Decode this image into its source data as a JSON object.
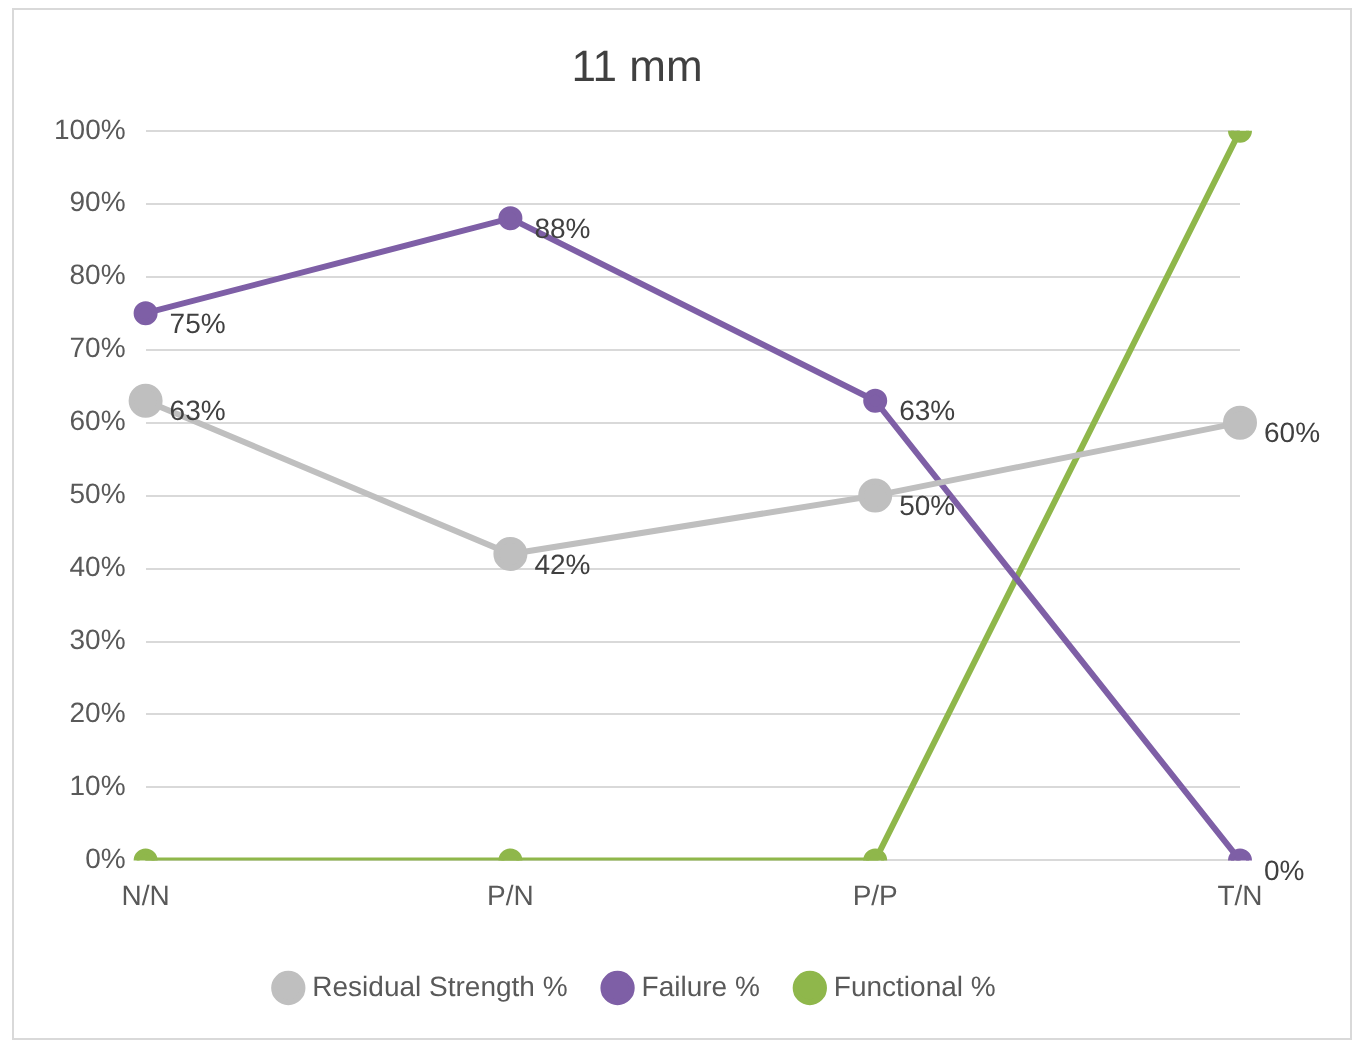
{
  "chart_data": {
    "type": "line",
    "title": "11 mm",
    "categories": [
      "N/N",
      "P/N",
      "P/P",
      "T/N"
    ],
    "series": [
      {
        "name": "Residual Strength %",
        "color": "#bfbfbf",
        "values": [
          63,
          42,
          50,
          60
        ],
        "value_labels": [
          "63%",
          "42%",
          "50%",
          "60%"
        ]
      },
      {
        "name": "Failure %",
        "color": "#7e5fa6",
        "values": [
          75,
          88,
          63,
          0
        ],
        "value_labels": [
          "75%",
          "88%",
          "63%",
          "0%"
        ]
      },
      {
        "name": "Functional %",
        "color": "#8fb74b",
        "values": [
          0,
          0,
          0,
          100
        ]
      }
    ],
    "ylim": [
      0,
      100
    ],
    "yticks": [
      {
        "value": 0,
        "label": "0%"
      },
      {
        "value": 10,
        "label": "10%"
      },
      {
        "value": 20,
        "label": "20%"
      },
      {
        "value": 30,
        "label": "30%"
      },
      {
        "value": 40,
        "label": "40%"
      },
      {
        "value": 50,
        "label": "50%"
      },
      {
        "value": 60,
        "label": "60%"
      },
      {
        "value": 70,
        "label": "70%"
      },
      {
        "value": 80,
        "label": "80%"
      },
      {
        "value": 90,
        "label": "90%"
      },
      {
        "value": 100,
        "label": "100%"
      }
    ],
    "grid": "y",
    "legend": "bottom",
    "marker": "circle",
    "line_style": "solid"
  }
}
